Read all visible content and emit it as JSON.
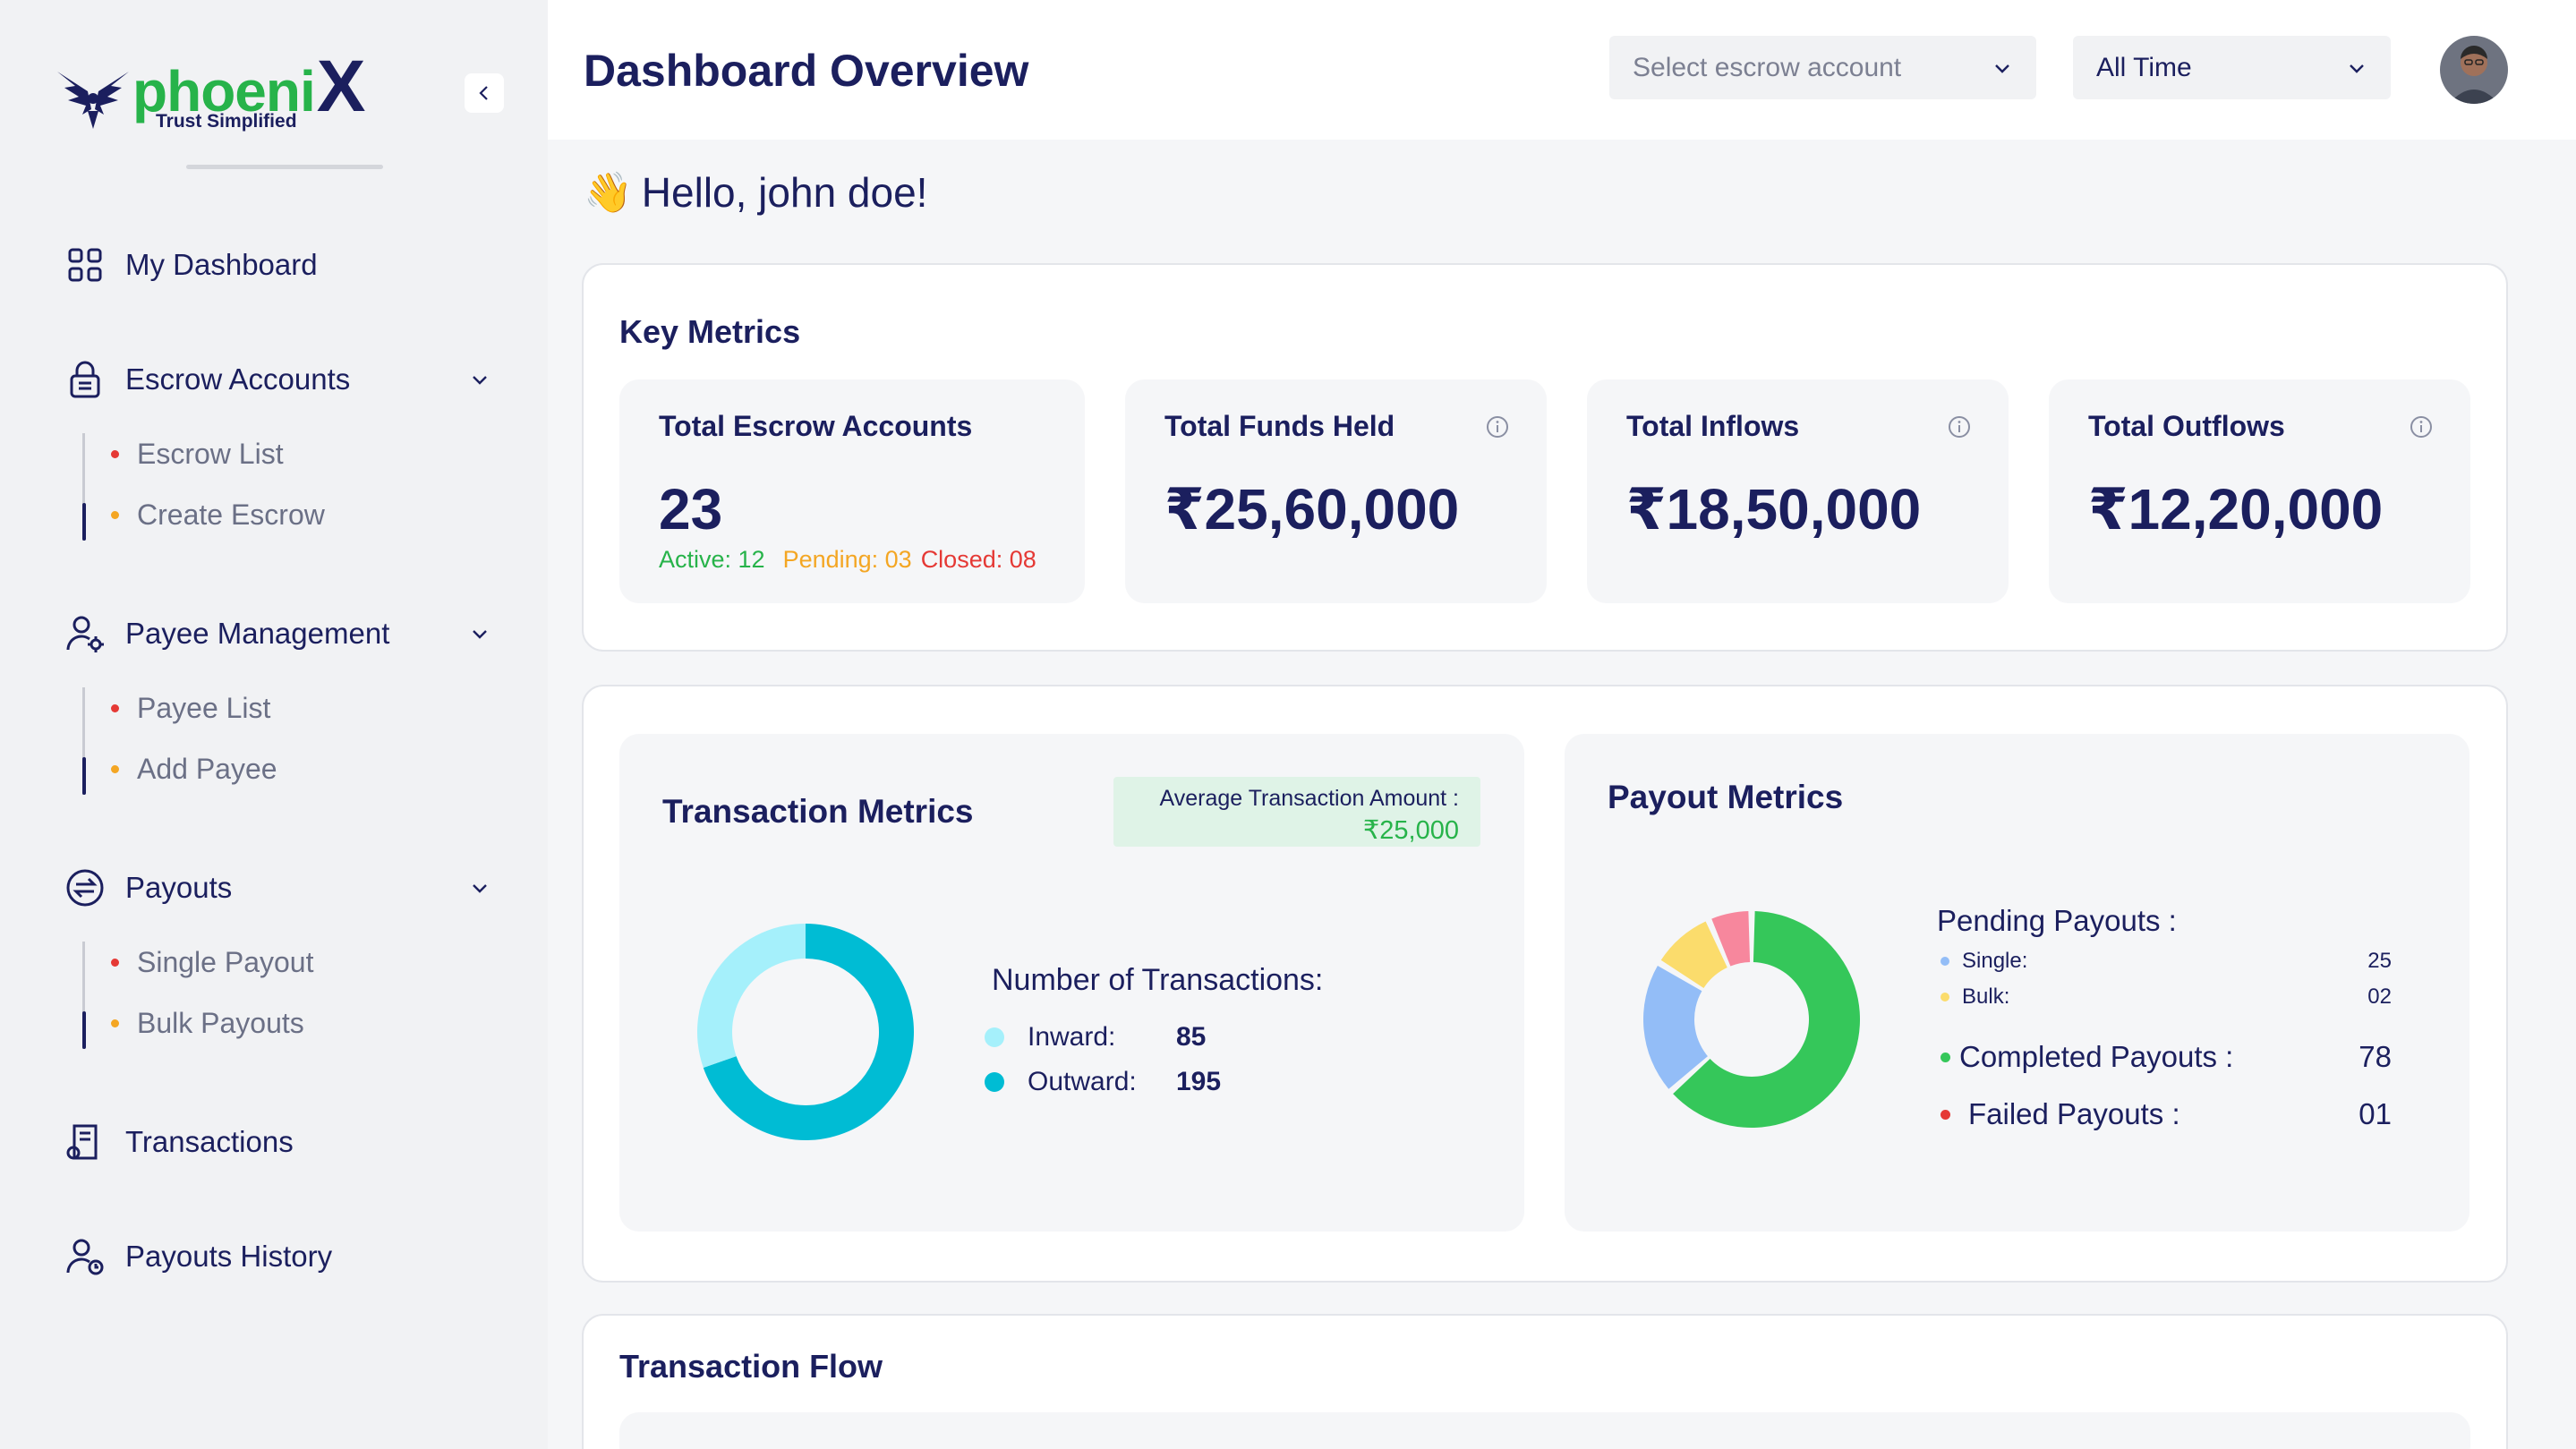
{
  "brand": {
    "name_prefix": "phoeni",
    "name_suffix": "X",
    "tagline": "Trust Simplified"
  },
  "sidebar": {
    "items": [
      {
        "label": "My Dashboard",
        "icon": "grid-icon"
      },
      {
        "label": "Escrow Accounts",
        "icon": "lock-icon",
        "sub": [
          "Escrow List",
          "Create Escrow"
        ]
      },
      {
        "label": "Payee Management",
        "icon": "user-gear-icon",
        "sub": [
          "Payee List",
          "Add Payee"
        ]
      },
      {
        "label": "Payouts",
        "icon": "exchange-icon",
        "sub": [
          "Single Payout",
          "Bulk Payouts"
        ]
      },
      {
        "label": "Transactions",
        "icon": "receipt-icon"
      },
      {
        "label": "Payouts History",
        "icon": "user-history-icon"
      }
    ]
  },
  "header": {
    "title": "Dashboard Overview",
    "escrow_select_placeholder": "Select escrow account",
    "time_select_value": "All Time"
  },
  "greeting": "Hello, john doe!",
  "key_metrics": {
    "title": "Key Metrics",
    "cards": [
      {
        "title": "Total Escrow Accounts",
        "value": "23"
      },
      {
        "title": "Total Funds Held",
        "value": "₹25,60,000"
      },
      {
        "title": "Total Inflows",
        "value": "₹18,50,000"
      },
      {
        "title": "Total Outflows",
        "value": "₹12,20,000"
      }
    ],
    "status": {
      "active": "Active: 12",
      "pending": "Pending: 03",
      "closed": "Closed: 08"
    }
  },
  "transaction_metrics": {
    "title": "Transaction Metrics",
    "avg_label": "Average Transaction Amount :",
    "avg_value": "₹25,000",
    "legend_title": "Number of Transactions:",
    "rows": [
      {
        "label": "Inward:",
        "value": "85",
        "color": "#a5f0fb"
      },
      {
        "label": "Outward:",
        "value": "195",
        "color": "#00bcd4"
      }
    ]
  },
  "payout_metrics": {
    "title": "Payout Metrics",
    "pending_label": "Pending Payouts :",
    "single_label": "Single:",
    "single_value": "25",
    "bulk_label": "Bulk:",
    "bulk_value": "02",
    "completed_label": "Completed Payouts :",
    "completed_value": "78",
    "failed_label": "Failed Payouts :",
    "failed_value": "01",
    "colors": {
      "single": "#93bdf7",
      "bulk": "#fbdc6c",
      "completed": "#35c75a",
      "failed": "#f7879d"
    }
  },
  "transaction_flow": {
    "title": "Transaction Flow"
  },
  "colors": {
    "navy": "#1b1f5e",
    "green": "#27b34a",
    "orange": "#f4a623",
    "red": "#e53935"
  }
}
